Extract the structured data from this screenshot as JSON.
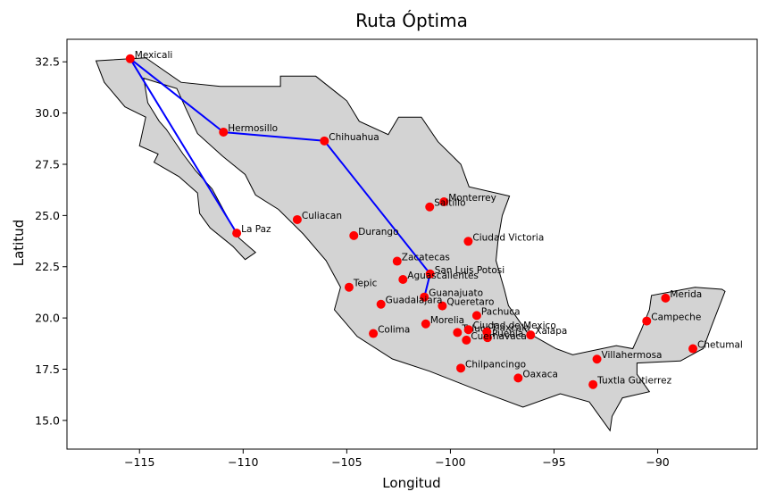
{
  "chart_data": {
    "type": "scatter",
    "title": "Ruta Óptima",
    "xlabel": "Longitud",
    "ylabel": "Latitud",
    "xlim": [
      -118.5,
      -85.2
    ],
    "ylim": [
      13.6,
      33.6
    ],
    "xticks": [
      -115,
      -110,
      -105,
      -100,
      -95,
      -90
    ],
    "xtick_labels": [
      "−115",
      "−110",
      "−105",
      "−100",
      "−95",
      "−90"
    ],
    "yticks": [
      15.0,
      17.5,
      20.0,
      22.5,
      25.0,
      27.5,
      30.0,
      32.5
    ],
    "ytick_labels": [
      "15.0",
      "17.5",
      "20.0",
      "22.5",
      "25.0",
      "27.5",
      "30.0",
      "32.5"
    ],
    "grid": false,
    "colors": {
      "map_fill": "#d3d3d3",
      "map_edge": "#000000",
      "route": "#0000ff",
      "city": "#ff0000"
    },
    "route": [
      "La Paz",
      "Mexicali",
      "Hermosillo",
      "Chihuahua",
      "San Luis Potosi",
      "Guanajuato"
    ],
    "cities": [
      {
        "name": "Mexicali",
        "lon": -115.45,
        "lat": 32.65
      },
      {
        "name": "Hermosillo",
        "lon": -110.95,
        "lat": 29.07
      },
      {
        "name": "Chihuahua",
        "lon": -106.08,
        "lat": 28.64
      },
      {
        "name": "La Paz",
        "lon": -110.31,
        "lat": 24.14
      },
      {
        "name": "Culiacan",
        "lon": -107.39,
        "lat": 24.8
      },
      {
        "name": "Durango",
        "lon": -104.66,
        "lat": 24.02
      },
      {
        "name": "Monterrey",
        "lon": -100.31,
        "lat": 25.67
      },
      {
        "name": "Saltillo",
        "lon": -101.0,
        "lat": 25.42
      },
      {
        "name": "Ciudad Victoria",
        "lon": -99.14,
        "lat": 23.74
      },
      {
        "name": "Zacatecas",
        "lon": -102.57,
        "lat": 22.77
      },
      {
        "name": "San Luis Potosi",
        "lon": -100.98,
        "lat": 22.15
      },
      {
        "name": "Aguascalientes",
        "lon": -102.29,
        "lat": 21.88
      },
      {
        "name": "Tepic",
        "lon": -104.89,
        "lat": 21.5
      },
      {
        "name": "Guanajuato",
        "lon": -101.26,
        "lat": 21.02
      },
      {
        "name": "Queretaro",
        "lon": -100.39,
        "lat": 20.59
      },
      {
        "name": "Guadalajara",
        "lon": -103.35,
        "lat": 20.67
      },
      {
        "name": "Pachuca",
        "lon": -98.73,
        "lat": 20.12
      },
      {
        "name": "Morelia",
        "lon": -101.19,
        "lat": 19.71
      },
      {
        "name": "Toluca",
        "lon": -99.66,
        "lat": 19.29
      },
      {
        "name": "Ciudad de Mexico",
        "lon": -99.13,
        "lat": 19.43
      },
      {
        "name": "Tlaxcala",
        "lon": -98.24,
        "lat": 19.32
      },
      {
        "name": "Puebla",
        "lon": -98.21,
        "lat": 19.04
      },
      {
        "name": "Cuernavaca",
        "lon": -99.23,
        "lat": 18.92
      },
      {
        "name": "Xalapa",
        "lon": -96.13,
        "lat": 19.17
      },
      {
        "name": "Colima",
        "lon": -103.72,
        "lat": 19.24
      },
      {
        "name": "Chilpancingo",
        "lon": -99.5,
        "lat": 17.55
      },
      {
        "name": "Oaxaca",
        "lon": -96.73,
        "lat": 17.07
      },
      {
        "name": "Tuxtla Gutierrez",
        "lon": -93.12,
        "lat": 16.75
      },
      {
        "name": "Villahermosa",
        "lon": -92.93,
        "lat": 17.99
      },
      {
        "name": "Campeche",
        "lon": -90.53,
        "lat": 19.85
      },
      {
        "name": "Merida",
        "lon": -89.62,
        "lat": 20.97
      },
      {
        "name": "Chetumal",
        "lon": -88.3,
        "lat": 18.5
      }
    ],
    "mainland_outline": [
      [
        -117.1,
        32.55
      ],
      [
        -114.7,
        32.7
      ],
      [
        -113.0,
        31.5
      ],
      [
        -111.1,
        31.3
      ],
      [
        -108.2,
        31.3
      ],
      [
        -108.2,
        31.8
      ],
      [
        -106.5,
        31.8
      ],
      [
        -105.0,
        30.6
      ],
      [
        -104.4,
        29.6
      ],
      [
        -103.0,
        28.95
      ],
      [
        -102.5,
        29.8
      ],
      [
        -101.4,
        29.8
      ],
      [
        -100.6,
        28.6
      ],
      [
        -99.5,
        27.5
      ],
      [
        -99.1,
        26.4
      ],
      [
        -97.15,
        25.95
      ],
      [
        -97.5,
        25.0
      ],
      [
        -97.7,
        23.8
      ],
      [
        -97.8,
        22.8
      ],
      [
        -97.4,
        21.4
      ],
      [
        -97.2,
        20.6
      ],
      [
        -96.3,
        19.3
      ],
      [
        -94.9,
        18.5
      ],
      [
        -94.1,
        18.2
      ],
      [
        -92.0,
        18.65
      ],
      [
        -91.2,
        18.5
      ],
      [
        -90.8,
        19.4
      ],
      [
        -90.4,
        20.4
      ],
      [
        -90.3,
        21.1
      ],
      [
        -88.2,
        21.5
      ],
      [
        -86.9,
        21.4
      ],
      [
        -86.75,
        21.3
      ],
      [
        -87.4,
        19.6
      ],
      [
        -87.8,
        18.5
      ],
      [
        -88.0,
        18.4
      ],
      [
        -88.9,
        17.9
      ],
      [
        -91.0,
        17.8
      ],
      [
        -91.0,
        17.25
      ],
      [
        -90.4,
        16.4
      ],
      [
        -91.7,
        16.1
      ],
      [
        -92.2,
        15.2
      ],
      [
        -92.3,
        14.5
      ],
      [
        -93.3,
        15.9
      ],
      [
        -94.7,
        16.3
      ],
      [
        -96.5,
        15.65
      ],
      [
        -98.5,
        16.4
      ],
      [
        -101.0,
        17.4
      ],
      [
        -102.8,
        18.0
      ],
      [
        -104.5,
        19.1
      ],
      [
        -105.6,
        20.4
      ],
      [
        -105.3,
        21.5
      ],
      [
        -106.0,
        22.8
      ],
      [
        -107.1,
        24.1
      ],
      [
        -108.3,
        25.3
      ],
      [
        -109.4,
        26.0
      ],
      [
        -109.9,
        27.0
      ],
      [
        -111.0,
        27.9
      ],
      [
        -112.2,
        29.0
      ],
      [
        -112.8,
        30.3
      ],
      [
        -113.2,
        31.2
      ],
      [
        -114.8,
        31.7
      ],
      [
        -114.6,
        30.5
      ],
      [
        -114.05,
        29.6
      ],
      [
        -113.7,
        29.2
      ],
      [
        -112.9,
        28.0
      ],
      [
        -112.3,
        27.2
      ],
      [
        -111.5,
        26.3
      ],
      [
        -110.7,
        24.8
      ],
      [
        -110.2,
        23.9
      ],
      [
        -109.4,
        23.2
      ],
      [
        -109.9,
        22.85
      ],
      [
        -110.5,
        23.5
      ],
      [
        -111.6,
        24.4
      ],
      [
        -112.1,
        25.1
      ],
      [
        -112.2,
        26.1
      ],
      [
        -113.1,
        26.9
      ],
      [
        -114.3,
        27.6
      ],
      [
        -114.1,
        28.0
      ],
      [
        -115.0,
        28.4
      ],
      [
        -114.7,
        29.8
      ],
      [
        -115.7,
        30.3
      ],
      [
        -116.7,
        31.5
      ]
    ]
  }
}
